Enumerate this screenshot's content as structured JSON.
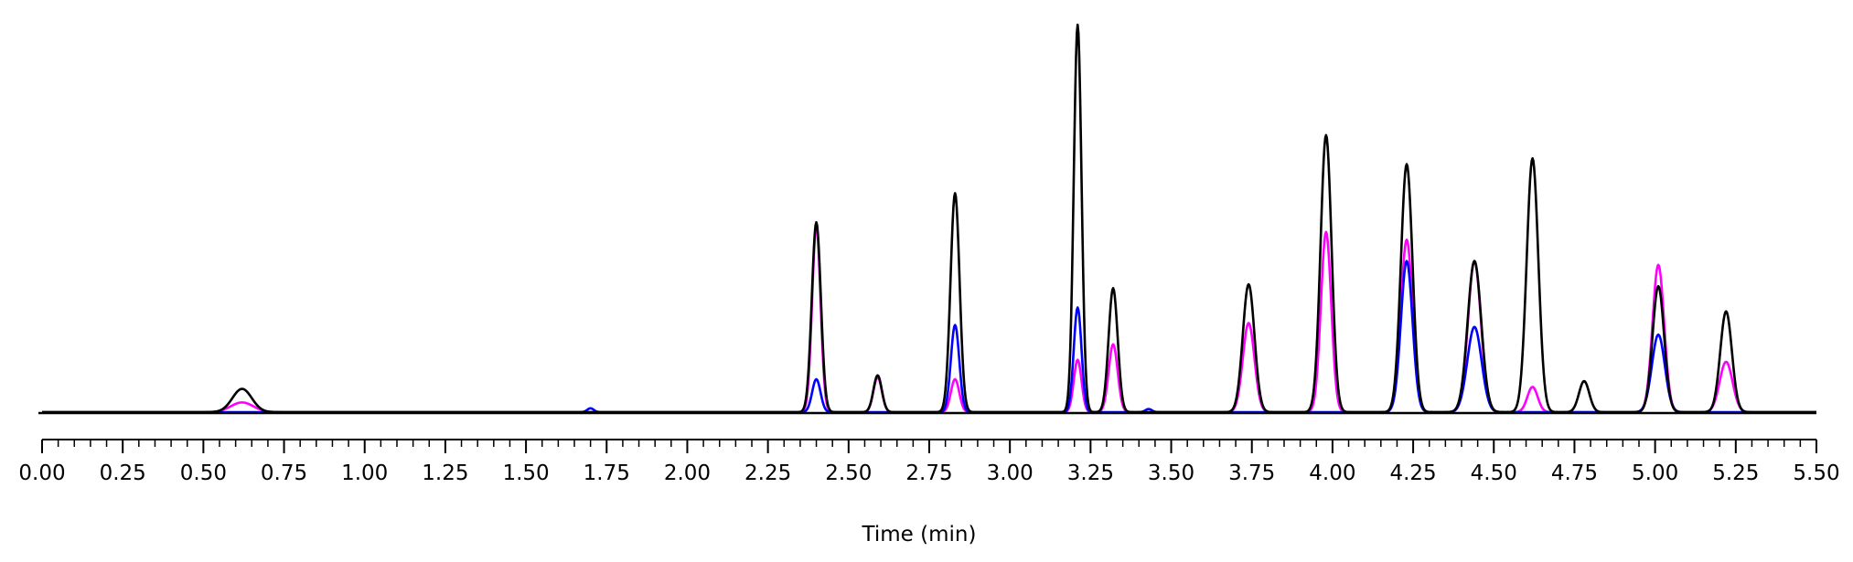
{
  "chart_data": {
    "type": "line",
    "title": "",
    "xlabel": "Time (min)",
    "ylabel": "",
    "xlim": [
      0.0,
      5.5
    ],
    "ylim": [
      0,
      100
    ],
    "grid": false,
    "x_major_ticks": [
      0.0,
      0.25,
      0.5,
      0.75,
      1.0,
      1.25,
      1.5,
      1.75,
      2.0,
      2.25,
      2.5,
      2.75,
      3.0,
      3.25,
      3.5,
      3.75,
      4.0,
      4.25,
      4.5,
      4.75,
      5.0,
      5.25,
      5.5
    ],
    "x_tick_labels": [
      "0.00",
      "0.25",
      "0.50",
      "0.75",
      "1.00",
      "1.25",
      "1.50",
      "1.75",
      "2.00",
      "2.25",
      "2.50",
      "2.75",
      "3.00",
      "3.25",
      "3.50",
      "3.75",
      "4.00",
      "4.25",
      "4.50",
      "4.75",
      "5.00",
      "5.25",
      "5.50"
    ],
    "x_minor_tick_step": 0.05,
    "series": [
      {
        "color": "#ff00ff",
        "peaks": [
          {
            "rt": 0.62,
            "height": 2.5,
            "width": 0.035
          },
          {
            "rt": 2.4,
            "height": 48.0,
            "width": 0.013
          },
          {
            "rt": 2.59,
            "height": 9.0,
            "width": 0.013
          },
          {
            "rt": 2.83,
            "height": 8.5,
            "width": 0.013
          },
          {
            "rt": 3.21,
            "height": 13.5,
            "width": 0.012
          },
          {
            "rt": 3.32,
            "height": 17.5,
            "width": 0.014
          },
          {
            "rt": 3.74,
            "height": 23.0,
            "width": 0.018
          },
          {
            "rt": 3.98,
            "height": 46.5,
            "width": 0.016
          },
          {
            "rt": 4.23,
            "height": 44.5,
            "width": 0.018
          },
          {
            "rt": 4.44,
            "height": 39.0,
            "width": 0.02
          },
          {
            "rt": 4.62,
            "height": 6.5,
            "width": 0.016
          },
          {
            "rt": 5.01,
            "height": 38.0,
            "width": 0.018
          },
          {
            "rt": 5.22,
            "height": 13.0,
            "width": 0.02
          }
        ]
      },
      {
        "color": "#0000ff",
        "peaks": [
          {
            "rt": 1.7,
            "height": 1.0,
            "width": 0.01
          },
          {
            "rt": 2.4,
            "height": 8.5,
            "width": 0.013
          },
          {
            "rt": 2.83,
            "height": 22.5,
            "width": 0.013
          },
          {
            "rt": 3.21,
            "height": 27.0,
            "width": 0.012
          },
          {
            "rt": 3.43,
            "height": 0.8,
            "width": 0.01
          },
          {
            "rt": 4.23,
            "height": 39.0,
            "width": 0.018
          },
          {
            "rt": 4.44,
            "height": 22.0,
            "width": 0.022
          },
          {
            "rt": 5.01,
            "height": 20.0,
            "width": 0.02
          }
        ]
      },
      {
        "color": "#000000",
        "peaks": [
          {
            "rt": 0.62,
            "height": 6.0,
            "width": 0.03
          },
          {
            "rt": 2.4,
            "height": 49.0,
            "width": 0.014
          },
          {
            "rt": 2.59,
            "height": 9.5,
            "width": 0.013
          },
          {
            "rt": 2.83,
            "height": 56.5,
            "width": 0.014
          },
          {
            "rt": 3.21,
            "height": 100.0,
            "width": 0.012
          },
          {
            "rt": 3.32,
            "height": 32.0,
            "width": 0.014
          },
          {
            "rt": 3.74,
            "height": 33.0,
            "width": 0.018
          },
          {
            "rt": 3.98,
            "height": 71.5,
            "width": 0.017
          },
          {
            "rt": 4.23,
            "height": 64.0,
            "width": 0.018
          },
          {
            "rt": 4.44,
            "height": 39.0,
            "width": 0.021
          },
          {
            "rt": 4.62,
            "height": 65.5,
            "width": 0.018
          },
          {
            "rt": 4.78,
            "height": 8.0,
            "width": 0.016
          },
          {
            "rt": 5.01,
            "height": 32.5,
            "width": 0.018
          },
          {
            "rt": 5.22,
            "height": 26.0,
            "width": 0.018
          }
        ]
      }
    ]
  }
}
